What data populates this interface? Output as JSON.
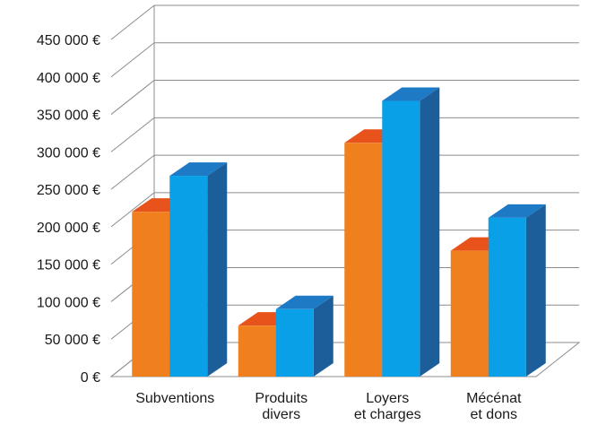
{
  "chart_data": {
    "type": "bar",
    "title": "",
    "xlabel": "",
    "ylabel": "",
    "ylim": [
      0,
      450000
    ],
    "y_tick_step": 50000,
    "y_tick_labels": [
      "0 €",
      "50 000 €",
      "100 000 €",
      "150 000 €",
      "200 000 €",
      "250 000 €",
      "300 000 €",
      "350 000 €",
      "400 000 €",
      "450 000 €"
    ],
    "grid": true,
    "legend": "none",
    "three_d": true,
    "categories": [
      [
        "Subventions"
      ],
      [
        "Produits",
        "divers"
      ],
      [
        "Loyers",
        "et charges"
      ],
      [
        "Mécénat",
        "et dons"
      ]
    ],
    "series": [
      {
        "values": [
          220000,
          68000,
          312000,
          168000
        ],
        "color": "#F07F1E",
        "top_color": "#E8531C",
        "side_color": "#B84A12"
      },
      {
        "values": [
          268000,
          90000,
          368000,
          212000
        ],
        "color": "#0AA0E8",
        "top_color": "#1F7AC6",
        "side_color": "#1B5E99"
      }
    ]
  }
}
